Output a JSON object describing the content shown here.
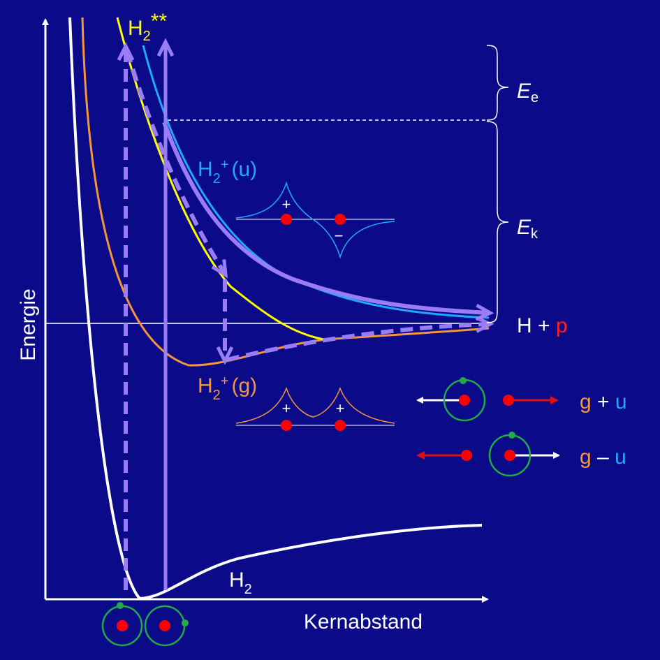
{
  "axes": {
    "y_label": "Energie",
    "x_label": "Kernabstand"
  },
  "curves": {
    "h2": {
      "base": "H",
      "sub": "2"
    },
    "h2_excited": {
      "base": "H",
      "sub": "2",
      "sup": "**"
    },
    "h2plus_u": {
      "base": "H",
      "sub": "2",
      "sup": "+",
      "state": "(u)"
    },
    "h2plus_g": {
      "base": "H",
      "sub": "2",
      "sup": "+",
      "state": "(g)"
    }
  },
  "energies": {
    "electron": {
      "symbol": "E",
      "sub": "e"
    },
    "kinetic": {
      "symbol": "E",
      "sub": "k"
    }
  },
  "dissociation": {
    "h": "H",
    "plus": "+",
    "p": "p"
  },
  "orbitals": {
    "u_signs": [
      "+",
      "−"
    ],
    "g_signs": [
      "+",
      "+"
    ]
  },
  "combinations": [
    {
      "g": "g",
      "op": "+",
      "u": "u"
    },
    {
      "g": "g",
      "op": "–",
      "u": "u"
    }
  ]
}
